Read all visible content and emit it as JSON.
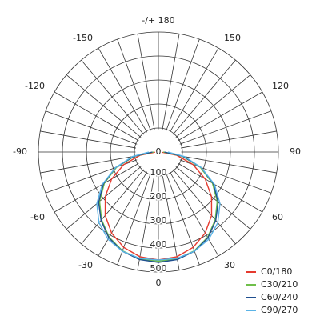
{
  "chart_data": {
    "type": "polar",
    "angle_zero": "bottom",
    "rlim": [
      0,
      500
    ],
    "rticks": [
      0,
      100,
      200,
      300,
      400,
      500
    ],
    "angle_grid_step": 10,
    "angle_ticks": [
      {
        "value": 180,
        "label": "-/+ 180"
      },
      -150,
      150,
      -120,
      120,
      -90,
      90,
      -60,
      60,
      -30,
      30,
      0
    ],
    "x": [
      -90,
      -80,
      -70,
      -60,
      -50,
      -40,
      -30,
      -20,
      -10,
      0,
      10,
      20,
      30,
      40,
      50,
      60,
      70,
      80,
      90
    ],
    "series": [
      {
        "name": "C0/180",
        "color": "#e53a2e",
        "values": [
          10,
          78,
          154,
          225,
          289,
          345,
          390,
          423,
          443,
          450,
          443,
          423,
          390,
          345,
          289,
          225,
          154,
          78,
          10
        ]
      },
      {
        "name": "C30/210",
        "color": "#6fbf4a",
        "values": [
          20,
          100,
          185,
          260,
          320,
          368,
          410,
          438,
          452,
          455,
          452,
          438,
          410,
          368,
          320,
          260,
          185,
          100,
          20
        ]
      },
      {
        "name": "C60/240",
        "color": "#1f4f8f",
        "values": [
          25,
          105,
          190,
          265,
          325,
          372,
          413,
          440,
          455,
          460,
          455,
          440,
          413,
          372,
          325,
          265,
          190,
          105,
          25
        ]
      },
      {
        "name": "C90/270",
        "color": "#5ab3e6",
        "values": [
          40,
          110,
          190,
          270,
          335,
          385,
          420,
          440,
          450,
          450,
          450,
          440,
          420,
          385,
          335,
          270,
          190,
          110,
          40
        ]
      }
    ],
    "legend": "bottom-right"
  }
}
